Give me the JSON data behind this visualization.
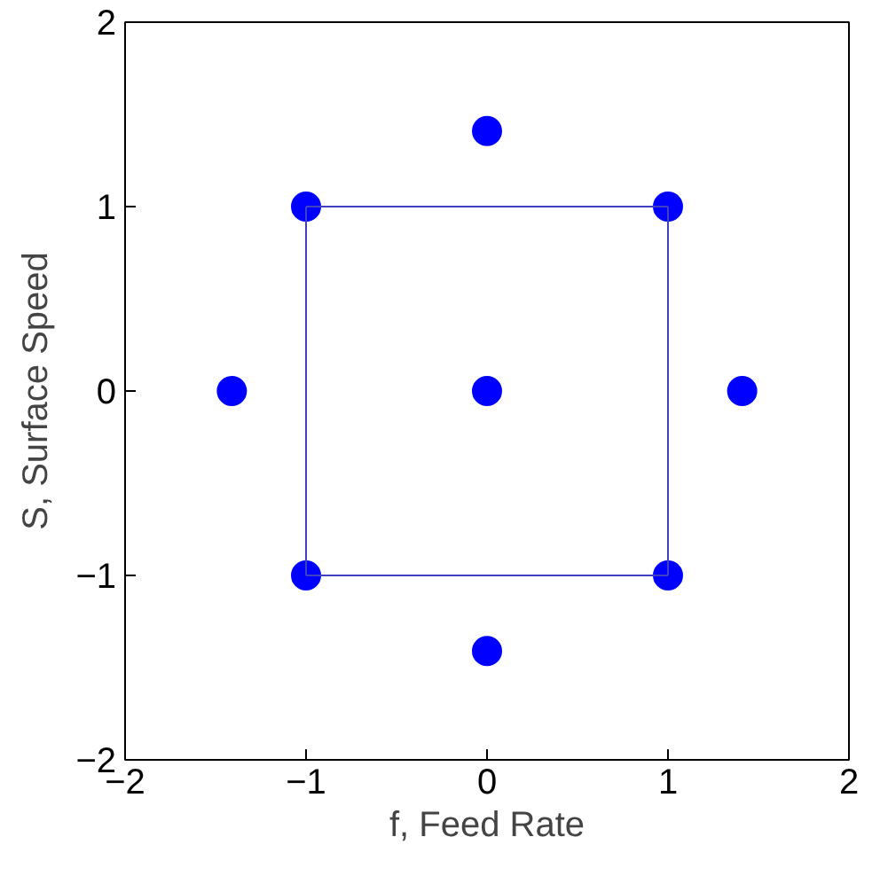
{
  "chart_data": {
    "type": "scatter",
    "xlabel": "f, Feed Rate",
    "ylabel": "S, Surface Speed",
    "xlim": [
      -2,
      2
    ],
    "ylim": [
      -2,
      2
    ],
    "xticks": [
      -2,
      -1,
      0,
      1,
      2
    ],
    "yticks": [
      -2,
      -1,
      0,
      1,
      2
    ],
    "grid": false,
    "series": [
      {
        "type": "line",
        "line_style": "solid",
        "color": "#4040c0",
        "x": [
          -1,
          1
        ],
        "values": [
          1,
          1
        ]
      },
      {
        "type": "line",
        "line_style": "solid",
        "color": "#4040c0",
        "x": [
          -1,
          1
        ],
        "values": [
          -1,
          -1
        ]
      },
      {
        "type": "line",
        "line_style": "solid",
        "color": "#4040c0",
        "x": [
          -1,
          -1
        ],
        "values": [
          -1,
          1
        ]
      },
      {
        "type": "line",
        "line_style": "solid",
        "color": "#4040c0",
        "x": [
          1,
          1
        ],
        "values": [
          -1,
          1
        ]
      },
      {
        "marker": "circle",
        "color": "#0000ff",
        "x": [
          -1,
          1,
          -1,
          1,
          -1.41,
          1.41,
          0,
          0,
          0
        ],
        "values": [
          -1,
          -1,
          1,
          1,
          0,
          0,
          -1.41,
          1.41,
          0
        ]
      }
    ]
  }
}
